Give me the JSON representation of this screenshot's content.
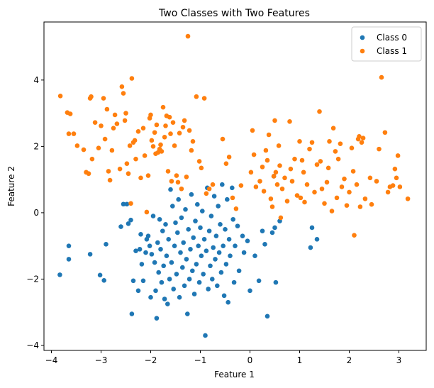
{
  "chart_data": {
    "type": "scatter",
    "title": "Two Classes with Two Features",
    "xlabel": "Feature 1",
    "ylabel": "Feature 2",
    "xlim": [
      -4.15,
      3.55
    ],
    "ylim": [
      -4.15,
      5.75
    ],
    "xticks": [
      -4,
      -3,
      -2,
      -1,
      0,
      1,
      2,
      3
    ],
    "yticks": [
      -4,
      -2,
      0,
      2,
      4
    ],
    "grid": false,
    "legend": "top-right",
    "series": [
      {
        "name": "Class 0",
        "color": "#1f77b4",
        "points": [
          [
            -3.83,
            -1.87
          ],
          [
            -3.65,
            -1.4
          ],
          [
            -3.65,
            -1.0
          ],
          [
            -3.22,
            -1.25
          ],
          [
            -3.02,
            -1.88
          ],
          [
            -2.94,
            -2.04
          ],
          [
            -2.9,
            -0.95
          ],
          [
            -2.6,
            -0.42
          ],
          [
            -2.55,
            0.26
          ],
          [
            -2.48,
            0.26
          ],
          [
            -2.45,
            -0.33
          ],
          [
            -2.4,
            -0.22
          ],
          [
            -2.38,
            -3.05
          ],
          [
            -2.35,
            -2.05
          ],
          [
            -2.3,
            -1.15
          ],
          [
            -2.25,
            -2.35
          ],
          [
            -2.22,
            -1.1
          ],
          [
            -2.2,
            -0.65
          ],
          [
            -2.18,
            -1.55
          ],
          [
            -2.15,
            -2.05
          ],
          [
            -2.1,
            -1.2
          ],
          [
            -2.08,
            -0.8
          ],
          [
            -2.05,
            -0.7
          ],
          [
            -2.02,
            -1.0
          ],
          [
            -2.0,
            -2.55
          ],
          [
            -1.98,
            -1.25
          ],
          [
            -1.95,
            -0.1
          ],
          [
            -1.92,
            -1.5
          ],
          [
            -1.9,
            -2.35
          ],
          [
            -1.88,
            -3.18
          ],
          [
            -1.86,
            -0.9
          ],
          [
            -1.84,
            -1.8
          ],
          [
            -1.82,
            -0.2
          ],
          [
            -1.8,
            -1.1
          ],
          [
            -1.78,
            -2.1
          ],
          [
            -1.76,
            -0.55
          ],
          [
            -1.74,
            -1.6
          ],
          [
            -1.72,
            -2.6
          ],
          [
            -1.7,
            -0.35
          ],
          [
            -1.68,
            -1.3
          ],
          [
            -1.66,
            -2.75
          ],
          [
            -1.64,
            -0.8
          ],
          [
            -1.62,
            -2.0
          ],
          [
            -1.6,
            0.7
          ],
          [
            -1.58,
            -1.5
          ],
          [
            -1.56,
            0.2
          ],
          [
            -1.54,
            -2.3
          ],
          [
            -1.52,
            -1.0
          ],
          [
            -1.5,
            -0.3
          ],
          [
            -1.48,
            -1.85
          ],
          [
            -1.46,
            -0.6
          ],
          [
            -1.44,
            0.4
          ],
          [
            -1.42,
            -2.55
          ],
          [
            -1.4,
            -1.2
          ],
          [
            -1.38,
            -0.15
          ],
          [
            -1.36,
            -1.65
          ],
          [
            -1.34,
            -0.9
          ],
          [
            -1.32,
            -2.2
          ],
          [
            -1.3,
            0.1
          ],
          [
            -1.28,
            -1.4
          ],
          [
            -1.26,
            -3.05
          ],
          [
            -1.24,
            -0.5
          ],
          [
            -1.22,
            -2.0
          ],
          [
            -1.2,
            -1.1
          ],
          [
            -1.18,
            0.55
          ],
          [
            -1.16,
            -1.75
          ],
          [
            -1.14,
            -0.75
          ],
          [
            -1.12,
            -2.45
          ],
          [
            -1.1,
            -0.25
          ],
          [
            -1.08,
            -1.55
          ],
          [
            -1.06,
            0.25
          ],
          [
            -1.04,
            -1.0
          ],
          [
            -1.02,
            -2.1
          ],
          [
            -1.0,
            -0.45
          ],
          [
            -0.98,
            -1.3
          ],
          [
            -0.96,
            0.05
          ],
          [
            -0.94,
            -1.85
          ],
          [
            -0.92,
            -0.8
          ],
          [
            -0.9,
            -3.7
          ],
          [
            -0.88,
            -1.15
          ],
          [
            -0.86,
            0.75
          ],
          [
            -0.84,
            -2.3
          ],
          [
            -0.82,
            -0.55
          ],
          [
            -0.8,
            -1.6
          ],
          [
            -0.78,
            -0.1
          ],
          [
            -0.76,
            -2.0
          ],
          [
            -0.74,
            -1.05
          ],
          [
            -0.72,
            0.5
          ],
          [
            -0.7,
            -1.4
          ],
          [
            -0.68,
            -0.7
          ],
          [
            -0.66,
            -2.2
          ],
          [
            -0.64,
            0.2
          ],
          [
            -0.62,
            -1.2
          ],
          [
            -0.6,
            -0.35
          ],
          [
            -0.58,
            -1.8
          ],
          [
            -0.56,
            0.85
          ],
          [
            -0.54,
            -1.0
          ],
          [
            -0.52,
            -2.5
          ],
          [
            -0.5,
            -0.5
          ],
          [
            -0.48,
            -1.55
          ],
          [
            -0.46,
            0.4
          ],
          [
            -0.44,
            -2.7
          ],
          [
            -0.42,
            -0.8
          ],
          [
            -0.4,
            -1.3
          ],
          [
            -0.36,
            0.75
          ],
          [
            -0.34,
            -0.2
          ],
          [
            -0.32,
            -2.1
          ],
          [
            -0.3,
            -1.0
          ],
          [
            -0.25,
            -0.4
          ],
          [
            -0.22,
            -1.75
          ],
          [
            -0.15,
            -0.7
          ],
          [
            -0.12,
            -1.2
          ],
          [
            -0.05,
            -0.85
          ],
          [
            0.0,
            -2.35
          ],
          [
            0.1,
            -1.3
          ],
          [
            0.18,
            -2.05
          ],
          [
            0.25,
            -0.55
          ],
          [
            0.3,
            -0.95
          ],
          [
            0.35,
            -3.12
          ],
          [
            0.45,
            -0.6
          ],
          [
            0.5,
            -0.45
          ],
          [
            0.48,
            1.1
          ],
          [
            0.52,
            -2.1
          ],
          [
            0.6,
            -0.25
          ],
          [
            1.22,
            -1.05
          ],
          [
            1.25,
            -0.45
          ],
          [
            1.35,
            -0.8
          ]
        ]
      },
      {
        "name": "Class 1",
        "color": "#ff7f0e",
        "points": [
          [
            -3.82,
            3.52
          ],
          [
            -3.68,
            3.02
          ],
          [
            -3.65,
            2.38
          ],
          [
            -3.62,
            2.98
          ],
          [
            -3.55,
            2.38
          ],
          [
            -3.48,
            2.02
          ],
          [
            -3.35,
            1.9
          ],
          [
            -3.3,
            1.22
          ],
          [
            -3.25,
            1.18
          ],
          [
            -3.22,
            3.45
          ],
          [
            -3.2,
            3.5
          ],
          [
            -3.18,
            1.62
          ],
          [
            -3.12,
            2.72
          ],
          [
            -3.05,
            1.95
          ],
          [
            -3.0,
            2.62
          ],
          [
            -2.95,
            3.45
          ],
          [
            -2.92,
            2.22
          ],
          [
            -2.88,
            3.12
          ],
          [
            -2.85,
            1.25
          ],
          [
            -2.82,
            0.98
          ],
          [
            -2.78,
            1.88
          ],
          [
            -2.75,
            2.55
          ],
          [
            -2.72,
            2.95
          ],
          [
            -2.68,
            2.68
          ],
          [
            -2.62,
            1.32
          ],
          [
            -2.58,
            3.8
          ],
          [
            -2.55,
            3.6
          ],
          [
            -2.52,
            2.78
          ],
          [
            -2.5,
            3.0
          ],
          [
            -2.48,
            1.48
          ],
          [
            -2.45,
            1.18
          ],
          [
            -2.42,
            2.02
          ],
          [
            -2.4,
            0.28
          ],
          [
            -2.38,
            4.05
          ],
          [
            -2.35,
            2.12
          ],
          [
            -2.32,
            2.18
          ],
          [
            -2.3,
            1.62
          ],
          [
            -2.25,
            2.45
          ],
          [
            -2.2,
            1.05
          ],
          [
            -2.15,
            2.55
          ],
          [
            -2.12,
            1.72
          ],
          [
            -2.08,
            0.02
          ],
          [
            -2.05,
            1.12
          ],
          [
            -2.02,
            2.85
          ],
          [
            -2.0,
            2.95
          ],
          [
            -1.98,
            2.18
          ],
          [
            -1.95,
            2.0
          ],
          [
            -1.92,
            2.42
          ],
          [
            -1.9,
            1.78
          ],
          [
            -1.88,
            2.65
          ],
          [
            -1.85,
            1.82
          ],
          [
            -1.82,
            1.92
          ],
          [
            -1.8,
            2.05
          ],
          [
            -1.78,
            1.85
          ],
          [
            -1.75,
            3.18
          ],
          [
            -1.72,
            2.28
          ],
          [
            -1.7,
            2.62
          ],
          [
            -1.68,
            2.92
          ],
          [
            -1.65,
            1.25
          ],
          [
            -1.62,
            2.88
          ],
          [
            -1.6,
            2.38
          ],
          [
            -1.58,
            0.95
          ],
          [
            -1.55,
            2.72
          ],
          [
            -1.52,
            2.02
          ],
          [
            -1.48,
            1.12
          ],
          [
            -1.45,
            0.92
          ],
          [
            -1.42,
            2.4
          ],
          [
            -1.38,
            0.72
          ],
          [
            -1.35,
            2.58
          ],
          [
            -1.32,
            2.78
          ],
          [
            -1.28,
            1.08
          ],
          [
            -1.25,
            5.32
          ],
          [
            -1.22,
            2.48
          ],
          [
            -1.18,
            1.88
          ],
          [
            -1.15,
            2.15
          ],
          [
            -1.08,
            3.5
          ],
          [
            -1.02,
            1.55
          ],
          [
            -0.98,
            1.35
          ],
          [
            -0.92,
            3.45
          ],
          [
            -0.88,
            0.58
          ],
          [
            -0.82,
            0.72
          ],
          [
            -0.75,
            0.85
          ],
          [
            -0.55,
            2.22
          ],
          [
            -0.48,
            1.48
          ],
          [
            -0.42,
            1.68
          ],
          [
            -0.35,
            0.45
          ],
          [
            -0.28,
            0.12
          ],
          [
            -0.18,
            0.82
          ],
          [
            0.02,
            1.22
          ],
          [
            0.05,
            2.48
          ],
          [
            0.08,
            1.75
          ],
          [
            0.12,
            0.78
          ],
          [
            0.2,
            0.95
          ],
          [
            0.25,
            1.38
          ],
          [
            0.28,
            0.65
          ],
          [
            0.32,
            1.88
          ],
          [
            0.35,
            1.58
          ],
          [
            0.38,
            2.35
          ],
          [
            0.42,
            0.42
          ],
          [
            0.45,
            0.18
          ],
          [
            0.48,
            1.1
          ],
          [
            0.5,
            2.78
          ],
          [
            0.52,
            1.22
          ],
          [
            0.55,
            0.85
          ],
          [
            0.58,
            2.02
          ],
          [
            0.6,
            1.42
          ],
          [
            0.62,
            -0.15
          ],
          [
            0.65,
            0.72
          ],
          [
            0.7,
            1.05
          ],
          [
            0.75,
            0.35
          ],
          [
            0.8,
            2.75
          ],
          [
            0.82,
            1.32
          ],
          [
            0.85,
            0.95
          ],
          [
            0.9,
            1.62
          ],
          [
            0.95,
            0.52
          ],
          [
            1.0,
            2.15
          ],
          [
            1.02,
            0.45
          ],
          [
            1.05,
            1.58
          ],
          [
            1.08,
            1.22
          ],
          [
            1.1,
            0.32
          ],
          [
            1.15,
            0.85
          ],
          [
            1.2,
            1.92
          ],
          [
            1.25,
            2.12
          ],
          [
            1.3,
            0.62
          ],
          [
            1.35,
            1.45
          ],
          [
            1.4,
            3.05
          ],
          [
            1.42,
            1.55
          ],
          [
            1.45,
            0.72
          ],
          [
            1.5,
            0.28
          ],
          [
            1.55,
            0.92
          ],
          [
            1.58,
            1.35
          ],
          [
            1.6,
            2.15
          ],
          [
            1.65,
            0.05
          ],
          [
            1.68,
            2.55
          ],
          [
            1.72,
            1.85
          ],
          [
            1.75,
            0.45
          ],
          [
            1.78,
            1.62
          ],
          [
            1.82,
            2.08
          ],
          [
            1.85,
            0.78
          ],
          [
            1.9,
            1.02
          ],
          [
            1.95,
            0.22
          ],
          [
            2.0,
            0.62
          ],
          [
            2.05,
            1.95
          ],
          [
            2.08,
            1.25
          ],
          [
            2.1,
            -0.68
          ],
          [
            2.15,
            0.85
          ],
          [
            2.18,
            2.22
          ],
          [
            2.2,
            2.3
          ],
          [
            2.22,
            0.18
          ],
          [
            2.25,
            2.12
          ],
          [
            2.28,
            2.25
          ],
          [
            2.32,
            0.42
          ],
          [
            2.42,
            1.05
          ],
          [
            2.45,
            0.25
          ],
          [
            2.55,
            0.95
          ],
          [
            2.6,
            1.92
          ],
          [
            2.65,
            4.08
          ],
          [
            2.72,
            2.42
          ],
          [
            2.78,
            0.62
          ],
          [
            2.82,
            0.78
          ],
          [
            2.88,
            0.82
          ],
          [
            2.92,
            1.32
          ],
          [
            2.95,
            1.05
          ],
          [
            2.98,
            1.72
          ],
          [
            3.02,
            0.78
          ],
          [
            3.18,
            0.42
          ]
        ]
      }
    ]
  }
}
